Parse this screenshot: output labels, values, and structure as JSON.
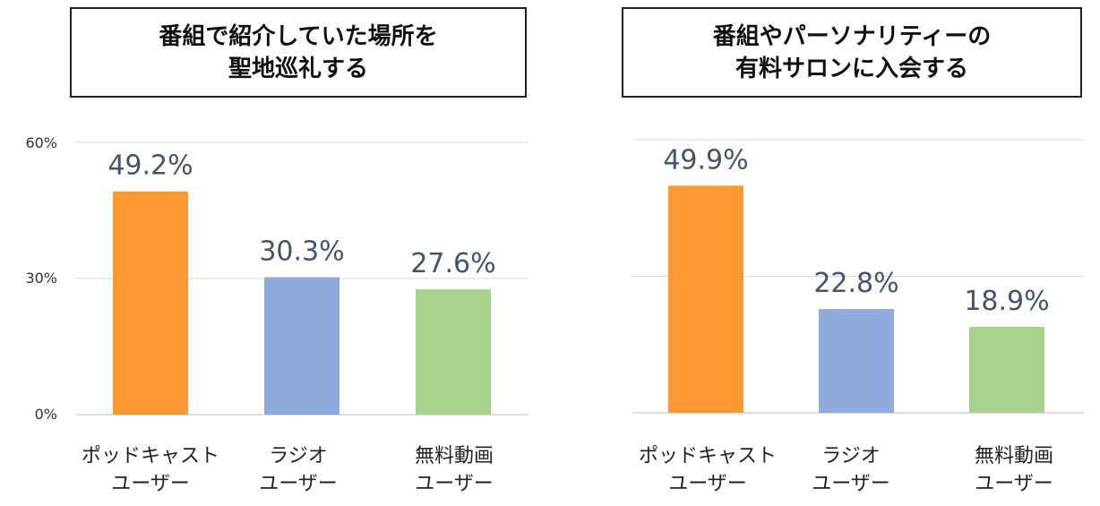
{
  "chart_data": [
    {
      "type": "bar",
      "title_lines": [
        "番組で紹介していた場所を",
        "聖地巡礼する"
      ],
      "categories": [
        [
          "ポッドキャスト",
          "ユーザー"
        ],
        [
          "ラジオ",
          "ユーザー"
        ],
        [
          "無料動画",
          "ユーザー"
        ]
      ],
      "values": [
        49.2,
        30.3,
        27.6
      ],
      "value_labels": [
        "49.2%",
        "30.3%",
        "27.6%"
      ],
      "colors": [
        "#ff9933",
        "#8faadc",
        "#a9d18e"
      ],
      "ylim": [
        0,
        60
      ],
      "yticks": [
        "0%",
        "30%",
        "60%"
      ],
      "grid": true
    },
    {
      "type": "bar",
      "title_lines": [
        "番組やパーソナリティーの",
        "有料サロンに入会する"
      ],
      "categories": [
        [
          "ポッドキャスト",
          "ユーザー"
        ],
        [
          "ラジオ",
          "ユーザー"
        ],
        [
          "無料動画",
          "ユーザー"
        ]
      ],
      "values": [
        49.9,
        22.8,
        18.9
      ],
      "value_labels": [
        "49.9%",
        "22.8%",
        "18.9%"
      ],
      "colors": [
        "#ff9933",
        "#8faadc",
        "#a9d18e"
      ],
      "ylim": [
        0,
        60
      ],
      "yticks": [],
      "grid": true
    }
  ]
}
